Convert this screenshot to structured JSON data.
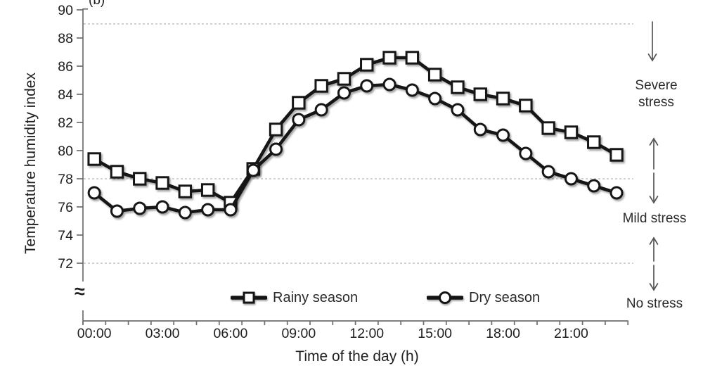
{
  "figure_label": "(b)",
  "colors": {
    "series_line": "#141414",
    "marker_fill": "#ffffff",
    "axis": "#6d6e71",
    "gridline": "#c3c4c6",
    "text": "#1f1f1f",
    "arrow": "#545456"
  },
  "y_axis": {
    "title": "Temperature humidity index",
    "tick_labels": [
      "90",
      "88",
      "86",
      "84",
      "82",
      "80",
      "78",
      "76",
      "74",
      "72"
    ],
    "break_symbol": "≈"
  },
  "x_axis": {
    "title": "Time of the day (h)",
    "tick_labels": [
      "00:00",
      "03:00",
      "06:00",
      "09:00",
      "12:00",
      "15:00",
      "18:00",
      "21:00"
    ]
  },
  "legend": {
    "rainy_label": "Rainy season",
    "dry_label": "Dry season"
  },
  "stress_annotations": {
    "severe": "Severe stress",
    "mild": "Mild stress",
    "none": "No stress"
  },
  "chart_data": {
    "type": "line",
    "title": "",
    "xlabel": "Time of the day (h)",
    "ylabel": "Temperature humidity index",
    "x": [
      "00:00",
      "01:00",
      "02:00",
      "03:00",
      "04:00",
      "05:00",
      "06:00",
      "07:00",
      "08:00",
      "09:00",
      "10:00",
      "11:00",
      "12:00",
      "13:00",
      "14:00",
      "15:00",
      "16:00",
      "17:00",
      "18:00",
      "19:00",
      "20:00",
      "21:00",
      "22:00",
      "23:00"
    ],
    "series": [
      {
        "name": "Rainy season",
        "marker": "square",
        "values": [
          79.4,
          78.5,
          78.0,
          77.7,
          77.1,
          77.2,
          76.3,
          78.7,
          81.5,
          83.4,
          84.6,
          85.1,
          86.1,
          86.6,
          86.6,
          85.4,
          84.5,
          84.0,
          83.7,
          83.2,
          81.6,
          81.3,
          80.6,
          79.7
        ]
      },
      {
        "name": "Dry season",
        "marker": "circle",
        "values": [
          77.0,
          75.7,
          75.9,
          76.0,
          75.6,
          75.8,
          75.8,
          78.6,
          80.1,
          82.2,
          82.9,
          84.1,
          84.6,
          84.7,
          84.3,
          83.7,
          82.9,
          81.5,
          81.1,
          79.8,
          78.5,
          78.0,
          77.5,
          77.0
        ]
      }
    ],
    "ylim": [
      72,
      90
    ],
    "y_tick_step": 2,
    "axis_break_below": 72,
    "gridlines_y": [
      89,
      78,
      72
    ],
    "grid_style": "dashed",
    "x_tick_labeled_every_hours": 3,
    "legend_position": "bottom-inside",
    "zone_annotations": [
      "Severe stress",
      "Mild stress",
      "No stress"
    ]
  }
}
